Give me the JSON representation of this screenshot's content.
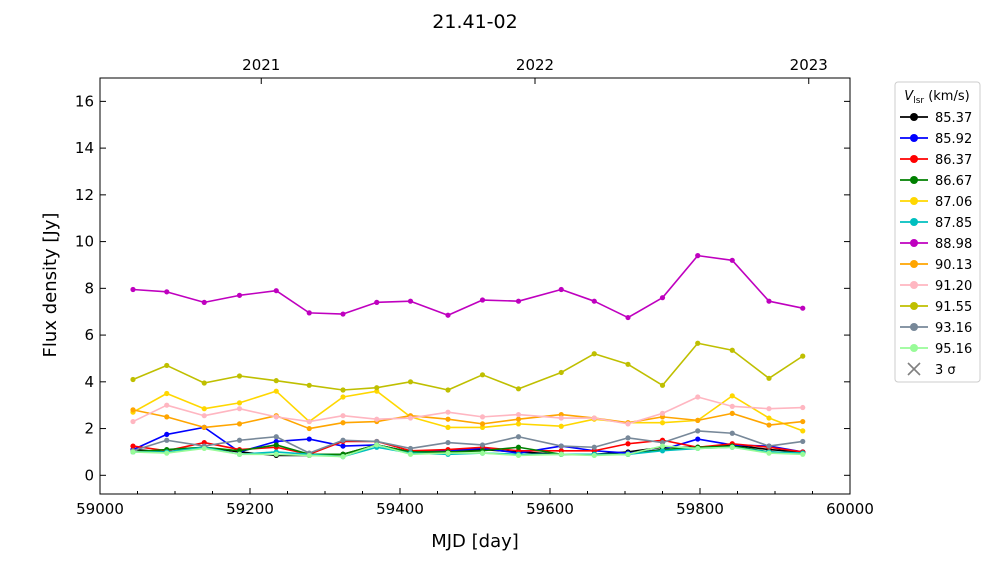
{
  "chart_data": {
    "type": "line",
    "title": "21.41-02",
    "xlabel": "MJD [day]",
    "ylabel": "Flux density [Jy]",
    "xlim": [
      59000,
      60000
    ],
    "ylim": [
      -0.8,
      17.0
    ],
    "x_ticks": [
      59000,
      59200,
      59400,
      59600,
      59800,
      60000
    ],
    "y_ticks": [
      0,
      2,
      4,
      6,
      8,
      10,
      12,
      14,
      16
    ],
    "top_axis": {
      "ticks": [
        {
          "x": 59215,
          "label": "2021"
        },
        {
          "x": 59580,
          "label": "2022"
        },
        {
          "x": 59945,
          "label": "2023"
        }
      ]
    },
    "legend": {
      "title_main": "V",
      "title_sub": "lsr",
      "title_unit": " (km/s)",
      "placement": "outside-right",
      "extra_entry": {
        "label": "3 σ",
        "marker": "x",
        "color": "#808080"
      }
    },
    "x": [
      59044,
      59089,
      59139,
      59186,
      59235,
      59279,
      59324,
      59369,
      59414,
      59464,
      59510,
      59558,
      59615,
      59659,
      59704,
      59750,
      59797,
      59843,
      59892,
      59937
    ],
    "series": [
      {
        "name": "85.37",
        "color": "#000000",
        "values": [
          1.1,
          1.0,
          1.2,
          1.0,
          0.85,
          0.85,
          0.9,
          1.3,
          1.0,
          1.0,
          1.1,
          1.0,
          0.9,
          0.9,
          1.0,
          1.2,
          1.2,
          1.3,
          1.1,
          1.0
        ]
      },
      {
        "name": "85.92",
        "color": "#0000ff",
        "values": [
          1.1,
          1.75,
          2.05,
          1.0,
          1.45,
          1.55,
          1.25,
          1.3,
          1.0,
          1.05,
          1.15,
          0.95,
          1.25,
          1.05,
          0.95,
          1.1,
          1.55,
          1.3,
          1.25,
          1.0
        ]
      },
      {
        "name": "86.37",
        "color": "#ff0000",
        "values": [
          1.25,
          1.05,
          1.4,
          1.1,
          1.2,
          0.9,
          1.45,
          1.45,
          1.05,
          1.1,
          1.2,
          1.05,
          1.05,
          1.05,
          1.35,
          1.5,
          1.2,
          1.35,
          1.2,
          1.0
        ]
      },
      {
        "name": "86.67",
        "color": "#008000",
        "values": [
          1.0,
          1.1,
          1.2,
          1.05,
          1.3,
          0.9,
          0.9,
          1.3,
          1.0,
          1.0,
          1.05,
          1.2,
          0.9,
          0.9,
          0.9,
          1.1,
          1.2,
          1.25,
          1.0,
          0.95
        ]
      },
      {
        "name": "87.06",
        "color": "#ffd700",
        "values": [
          2.7,
          3.5,
          2.85,
          3.1,
          3.6,
          2.3,
          3.35,
          3.6,
          2.5,
          2.05,
          2.05,
          2.2,
          2.1,
          2.4,
          2.25,
          2.25,
          2.35,
          3.4,
          2.45,
          1.9
        ]
      },
      {
        "name": "87.85",
        "color": "#00bfbf",
        "values": [
          1.0,
          1.0,
          1.2,
          0.9,
          1.0,
          0.9,
          0.8,
          1.2,
          0.95,
          0.9,
          0.95,
          0.9,
          0.9,
          0.9,
          0.9,
          1.05,
          1.15,
          1.2,
          1.0,
          0.95
        ]
      },
      {
        "name": "88.98",
        "color": "#bf00bf",
        "values": [
          7.95,
          7.85,
          7.4,
          7.7,
          7.9,
          6.95,
          6.9,
          7.4,
          7.45,
          6.85,
          7.5,
          7.45,
          7.95,
          7.45,
          6.75,
          7.6,
          9.4,
          9.2,
          7.45,
          7.15
        ]
      },
      {
        "name": "90.13",
        "color": "#ffa500",
        "values": [
          2.8,
          2.5,
          2.05,
          2.2,
          2.55,
          2.0,
          2.25,
          2.3,
          2.55,
          2.4,
          2.2,
          2.4,
          2.6,
          2.45,
          2.25,
          2.5,
          2.35,
          2.65,
          2.15,
          2.3
        ]
      },
      {
        "name": "91.20",
        "color": "#ffb6c1",
        "values": [
          2.3,
          3.0,
          2.55,
          2.85,
          2.5,
          2.3,
          2.55,
          2.4,
          2.45,
          2.7,
          2.5,
          2.6,
          2.45,
          2.45,
          2.2,
          2.65,
          3.35,
          2.95,
          2.85,
          2.9
        ]
      },
      {
        "name": "91.55",
        "color": "#bfbf00",
        "values": [
          4.1,
          4.7,
          3.95,
          4.25,
          4.05,
          3.85,
          3.65,
          3.75,
          4.0,
          3.65,
          4.3,
          3.7,
          4.4,
          5.2,
          4.75,
          3.85,
          5.65,
          5.35,
          4.15,
          5.1
        ]
      },
      {
        "name": "93.16",
        "color": "#778899",
        "values": [
          1.05,
          1.5,
          1.25,
          1.5,
          1.65,
          0.95,
          1.5,
          1.45,
          1.15,
          1.4,
          1.3,
          1.65,
          1.25,
          1.2,
          1.6,
          1.4,
          1.9,
          1.8,
          1.25,
          1.45
        ]
      },
      {
        "name": "95.16",
        "color": "#98fb98",
        "values": [
          1.0,
          0.95,
          1.15,
          0.9,
          0.9,
          0.85,
          0.8,
          1.3,
          0.9,
          0.95,
          0.95,
          0.85,
          0.9,
          0.85,
          0.9,
          1.25,
          1.15,
          1.2,
          0.95,
          0.9
        ]
      }
    ]
  }
}
